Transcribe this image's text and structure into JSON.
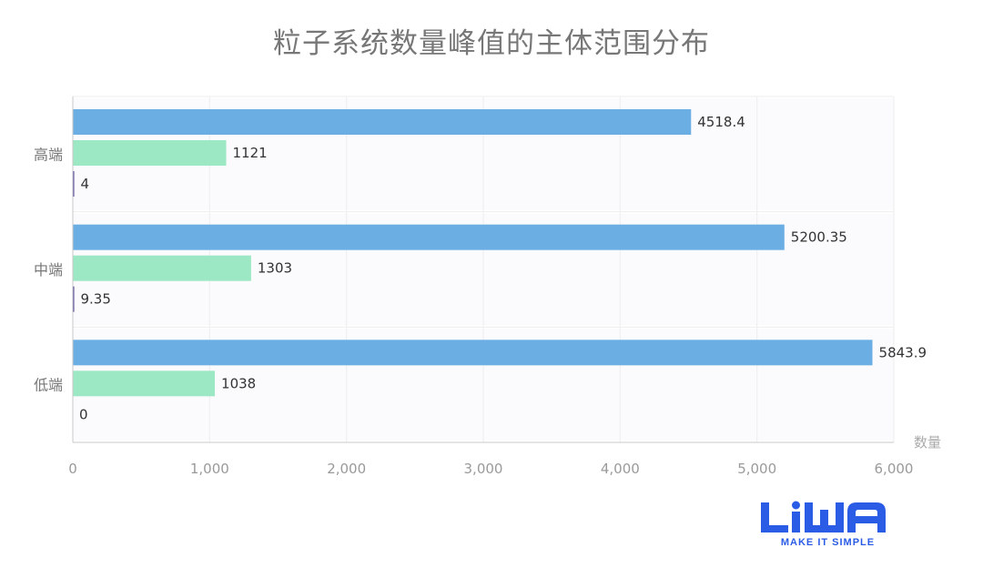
{
  "chart_data": {
    "type": "bar",
    "orientation": "horizontal",
    "title": "粒子系统数量峰值的主体范围分布",
    "xlabel": "数量",
    "ylabel": "",
    "categories": [
      "高端",
      "中端",
      "低端"
    ],
    "series": [
      {
        "values": [
          4518.4,
          5200.35,
          5843.9
        ],
        "color": "#6aaee3",
        "labels": [
          "4518.4",
          "5200.35",
          "5843.9"
        ]
      },
      {
        "values": [
          1121,
          1303,
          1038
        ],
        "color": "#9de8c4",
        "labels": [
          "1121",
          "1303",
          "1038"
        ]
      },
      {
        "values": [
          4,
          9.35,
          0
        ],
        "color": "#4b3d8f",
        "labels": [
          "4",
          "9.35",
          "0"
        ]
      }
    ],
    "xlim": [
      0,
      6000
    ],
    "xticks": [
      0,
      1000,
      2000,
      3000,
      4000,
      5000,
      6000
    ],
    "xtick_labels": [
      "0",
      "1,000",
      "2,000",
      "3,000",
      "4,000",
      "5,000",
      "6,000"
    ],
    "grid": true,
    "legend": "none"
  },
  "logo": {
    "text": "LiWA",
    "tagline": "MAKE IT SIMPLE",
    "color": "#2b5ce6"
  }
}
